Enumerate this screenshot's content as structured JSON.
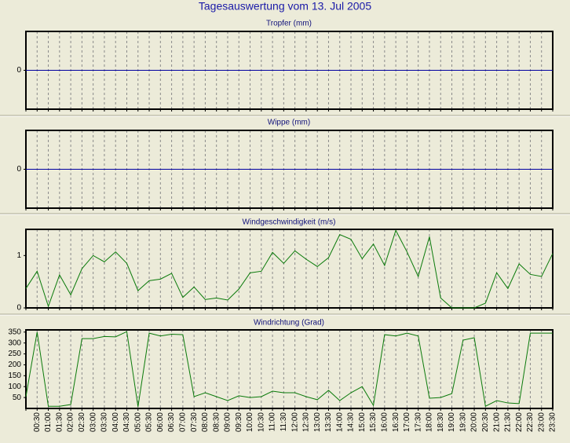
{
  "title": "Tagesauswertung vom 13. Jul 2005",
  "chart_data": [
    {
      "type": "line",
      "title": "Tropfer (mm)",
      "color": "#0000a0",
      "ylim": [
        -1,
        1
      ],
      "yticks": [
        0
      ],
      "values": [
        0,
        0,
        0,
        0,
        0,
        0,
        0,
        0,
        0,
        0,
        0,
        0,
        0,
        0,
        0,
        0,
        0,
        0,
        0,
        0,
        0,
        0,
        0,
        0,
        0,
        0,
        0,
        0,
        0,
        0,
        0,
        0,
        0,
        0,
        0,
        0,
        0,
        0,
        0,
        0,
        0,
        0,
        0,
        0,
        0,
        0,
        0,
        0
      ]
    },
    {
      "type": "line",
      "title": "Wippe (mm)",
      "color": "#0000a0",
      "ylim": [
        -1,
        1
      ],
      "yticks": [
        0
      ],
      "values": [
        0,
        0,
        0,
        0,
        0,
        0,
        0,
        0,
        0,
        0,
        0,
        0,
        0,
        0,
        0,
        0,
        0,
        0,
        0,
        0,
        0,
        0,
        0,
        0,
        0,
        0,
        0,
        0,
        0,
        0,
        0,
        0,
        0,
        0,
        0,
        0,
        0,
        0,
        0,
        0,
        0,
        0,
        0,
        0,
        0,
        0,
        0,
        0
      ]
    },
    {
      "type": "line",
      "title": "Windgeschwindigkeit (m/s)",
      "color": "#0a7a0a",
      "ylim": [
        0,
        1.5
      ],
      "yticks": [
        0,
        1
      ],
      "values": [
        0.37,
        0.7,
        0.03,
        0.63,
        0.25,
        0.75,
        1.0,
        0.88,
        1.07,
        0.85,
        0.33,
        0.52,
        0.55,
        0.66,
        0.2,
        0.4,
        0.16,
        0.19,
        0.15,
        0.36,
        0.67,
        0.7,
        1.06,
        0.85,
        1.09,
        0.93,
        0.79,
        0.96,
        1.4,
        1.31,
        0.94,
        1.22,
        0.81,
        1.48,
        1.07,
        0.6,
        1.36,
        0.19,
        0,
        0,
        0,
        0.09,
        0.67,
        0.37,
        0.84,
        0.64,
        0.6,
        1.04
      ]
    },
    {
      "type": "line",
      "title": "Windrichtung (Grad)",
      "color": "#0a7a0a",
      "ylim": [
        0,
        360
      ],
      "yticks": [
        50,
        100,
        150,
        200,
        250,
        300,
        350
      ],
      "values": [
        54,
        350,
        10,
        10,
        18,
        320,
        320,
        330,
        328,
        352,
        8,
        345,
        332,
        340,
        338,
        54,
        72,
        54,
        36,
        58,
        50,
        54,
        79,
        72,
        72,
        54,
        40,
        83,
        36,
        72,
        100,
        14,
        338,
        332,
        345,
        332,
        47,
        50,
        68,
        313,
        324,
        10,
        36,
        25,
        22,
        345,
        345,
        345
      ],
      "categories": [
        null,
        "00:30",
        "01:00",
        "01:30",
        "02:00",
        "02:30",
        "03:00",
        "03:30",
        "04:00",
        "04:30",
        "05:00",
        "05:30",
        "06:00",
        "06:30",
        "07:00",
        "07:30",
        "08:00",
        "08:30",
        "09:00",
        "09:30",
        "10:00",
        "10:30",
        "11:00",
        "11:30",
        "12:00",
        "12:30",
        "13:00",
        "13:30",
        "14:00",
        "14:30",
        "15:00",
        "15:30",
        "16:00",
        "16:30",
        "17:00",
        "17:30",
        "18:00",
        "18:30",
        "19:00",
        "19:30",
        "20:00",
        "20:30",
        "21:00",
        "21:30",
        "22:00",
        "22:30",
        "23:00",
        "23:30"
      ]
    }
  ]
}
